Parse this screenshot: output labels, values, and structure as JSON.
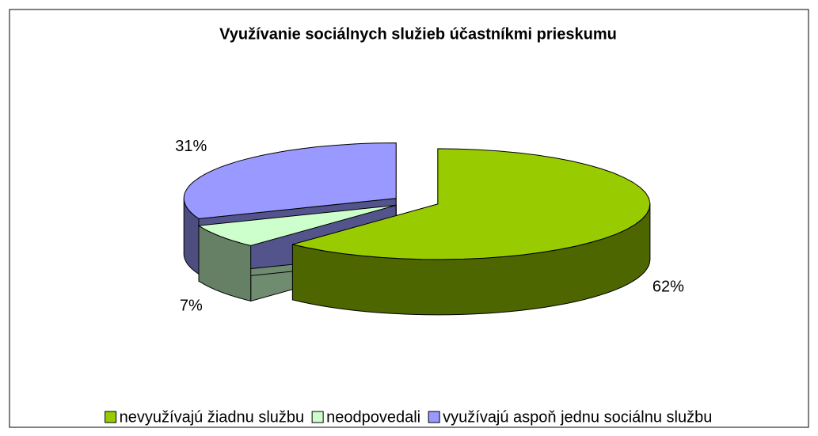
{
  "chart_data": {
    "type": "pie",
    "title": "Využívanie sociálnych služieb účastníkmi prieskumu",
    "categories": [
      "nevyužívajú žiadnu službu",
      "neodpovedali",
      "využívajú aspoň jednu sociálnu službu"
    ],
    "values": [
      62,
      7,
      31
    ],
    "value_labels": [
      "62%",
      "7%",
      "31%"
    ],
    "colors": [
      "#99cc00",
      "#ccffcc",
      "#9999ff"
    ],
    "legend": "bottom"
  }
}
